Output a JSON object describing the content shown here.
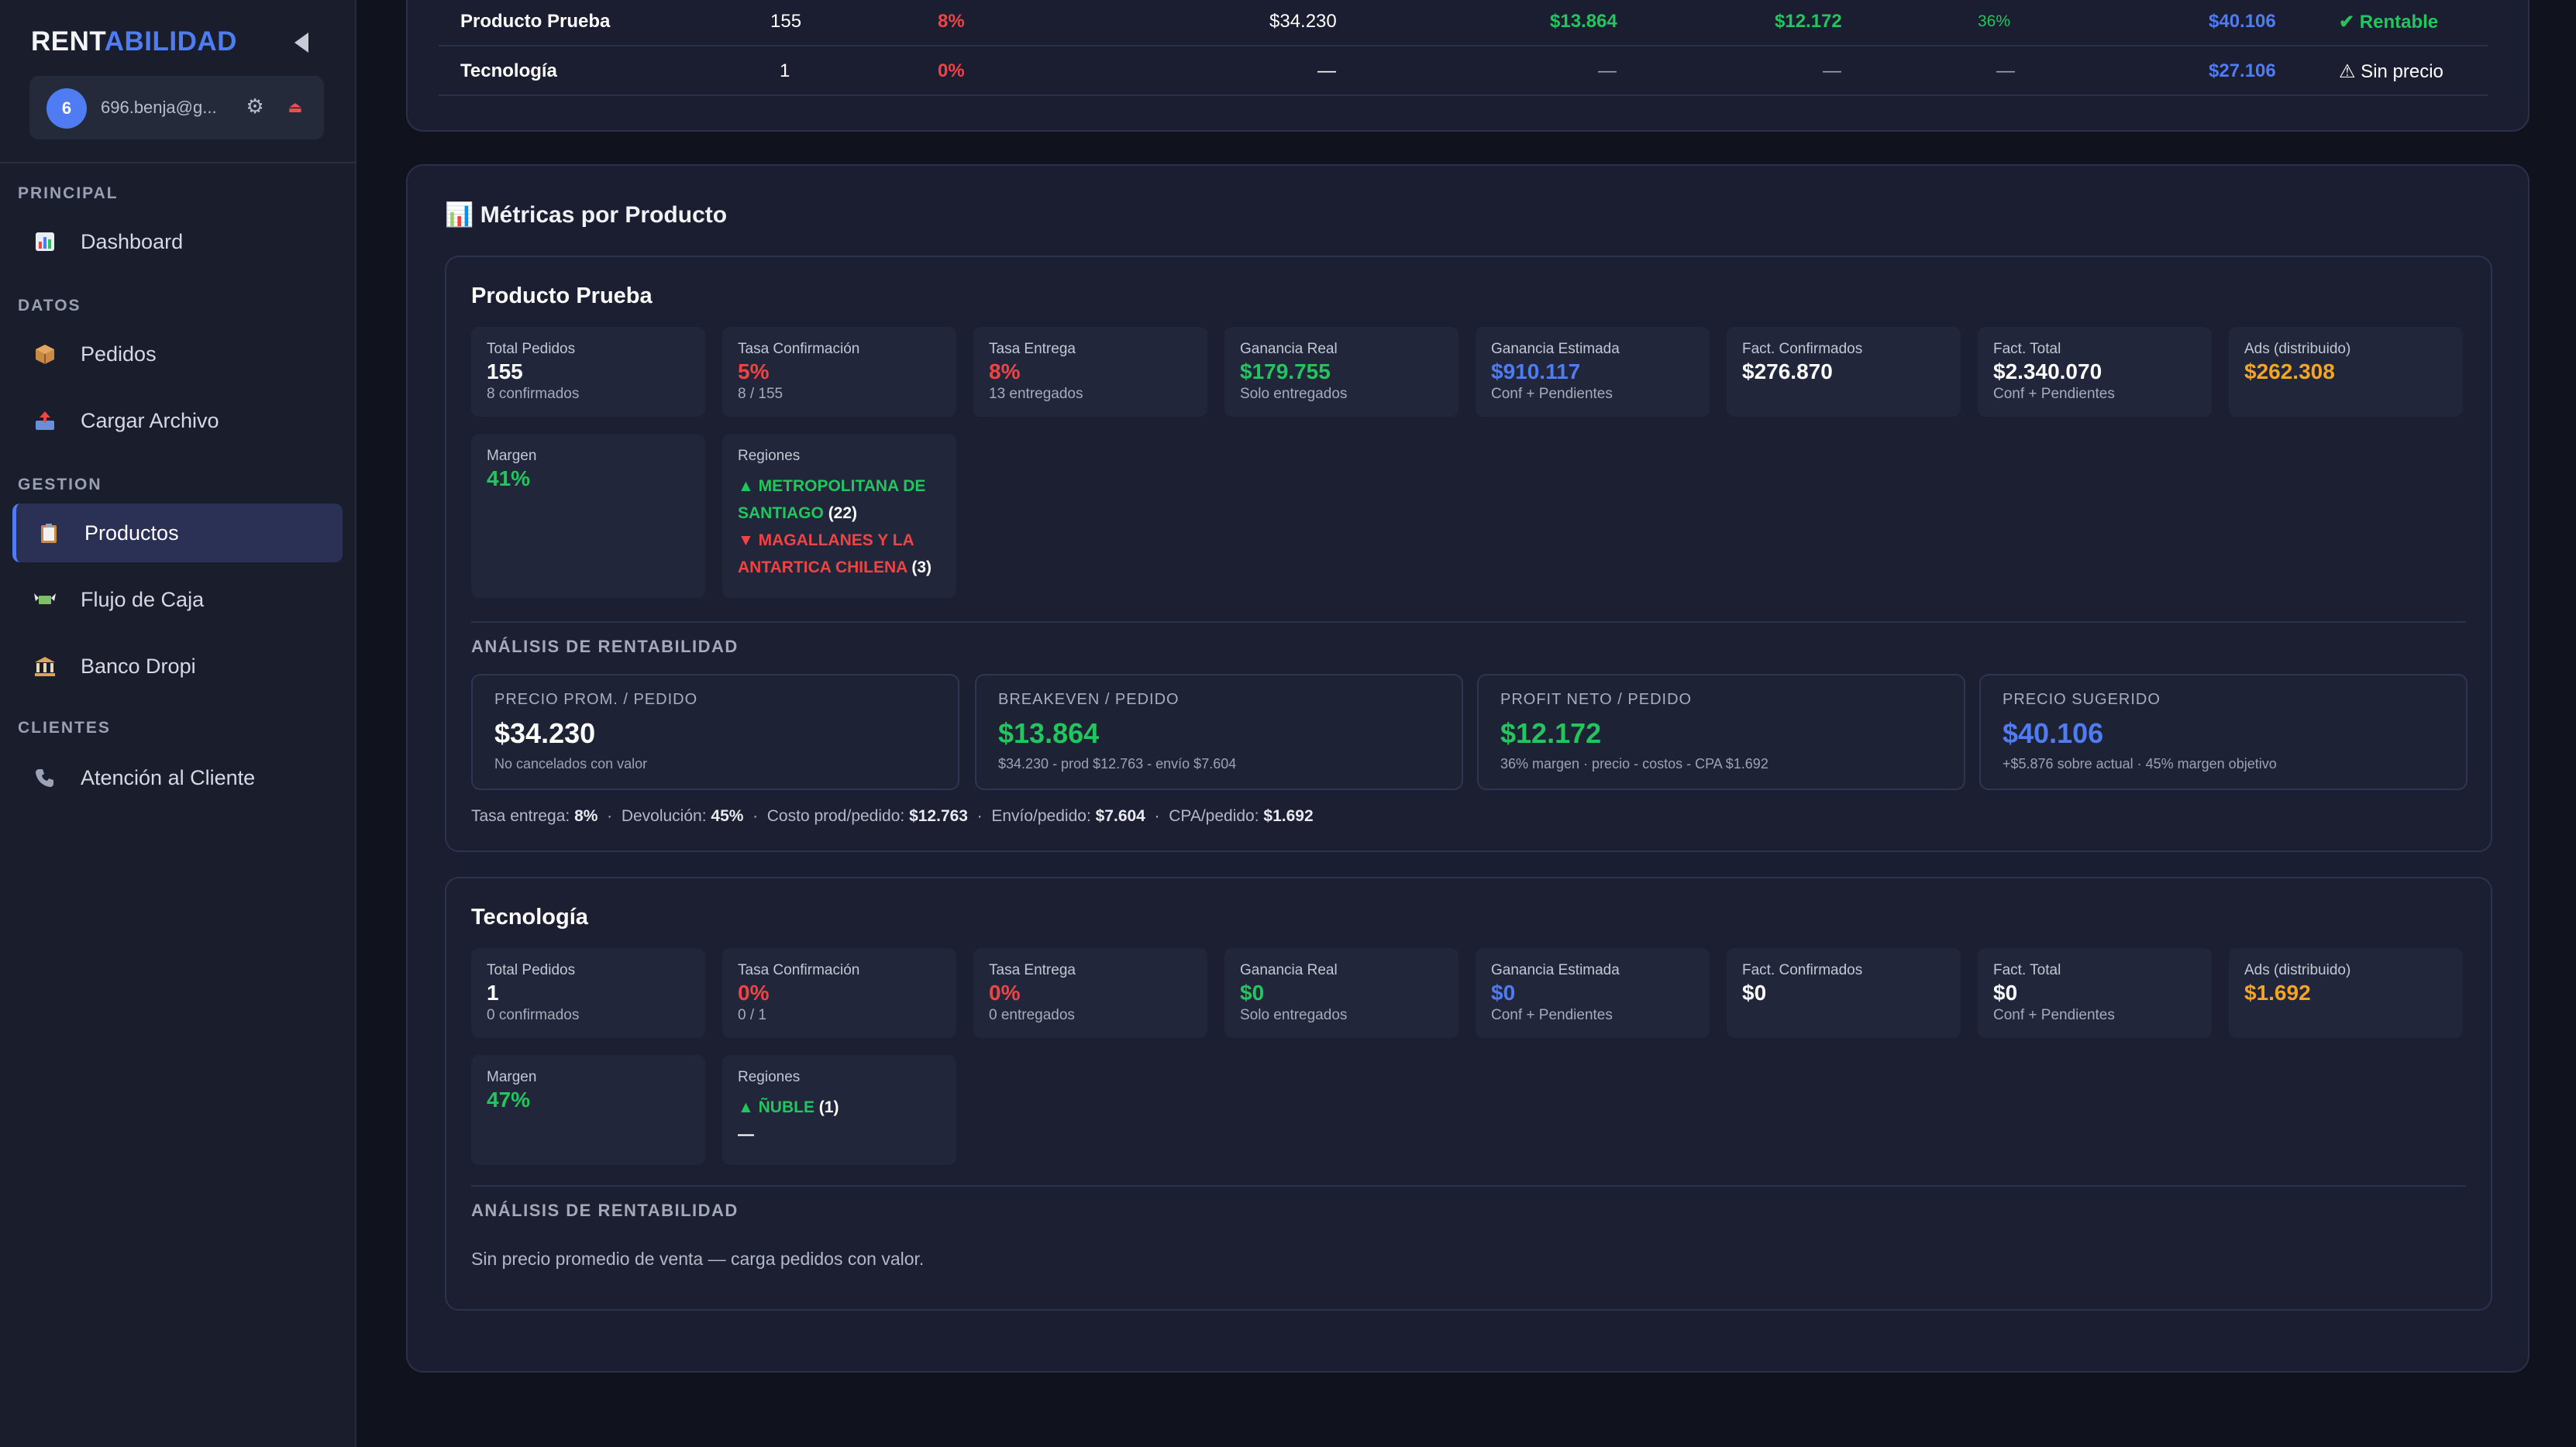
{
  "app": {
    "brand_a": "RENT",
    "brand_b": "ABILIDAD"
  },
  "user": {
    "avatar": "6",
    "email": "696.benja@g...",
    "settings_icon": "gear-icon",
    "logout_icon": "eject-icon"
  },
  "nav": {
    "principal": "PRINCIPAL",
    "datos": "DATOS",
    "gestion": "GESTION",
    "clientes": "CLIENTES",
    "dashboard": "Dashboard",
    "pedidos": "Pedidos",
    "cargar": "Cargar Archivo",
    "productos": "Productos",
    "flujo": "Flujo de Caja",
    "banco": "Banco Dropi",
    "atencion": "Atención al Cliente"
  },
  "table": {
    "rows": [
      {
        "name": "Producto Prueba",
        "orders": "155",
        "rate": "8%",
        "price": "$34.230",
        "breakeven": "$13.864",
        "profit": "$12.172",
        "margin": "36%",
        "suggested": "$40.106",
        "status": "✔ Rentable"
      },
      {
        "name": "Tecnología",
        "orders": "1",
        "rate": "0%",
        "price": "—",
        "breakeven": "—",
        "profit": "—",
        "margin": "—",
        "suggested": "$27.106",
        "status": "⚠ Sin precio"
      }
    ]
  },
  "metrics": {
    "title": "📊 Métricas por Producto",
    "p1": {
      "name": "Producto Prueba",
      "total_t": "Total Pedidos",
      "total_v": "155",
      "total_s": "8 confirmados",
      "conf_t": "Tasa Confirmación",
      "conf_v": "5%",
      "conf_s": "8 / 155",
      "ent_t": "Tasa Entrega",
      "ent_v": "8%",
      "ent_s": "13 entregados",
      "greal_t": "Ganancia Real",
      "greal_v": "$179.755",
      "greal_s": "Solo entregados",
      "gest_t": "Ganancia Estimada",
      "gest_v": "$910.117",
      "gest_s": "Conf + Pendientes",
      "fconf_t": "Fact. Confirmados",
      "fconf_v": "$276.870",
      "ftot_t": "Fact. Total",
      "ftot_v": "$2.340.070",
      "ftot_s": "Conf + Pendientes",
      "ads_t": "Ads (distribuido)",
      "ads_v": "$262.308",
      "margen_t": "Margen",
      "margen_v": "41%",
      "reg_t": "Regiones",
      "reg1": "▲ METROPOLITANA DE SANTIAGO",
      "reg1_n": "(22)",
      "reg2": "▼ MAGALLANES Y LA ANTARTICA CHILENA",
      "reg2_n": "(3)",
      "analysis_t": "ANÁLISIS DE RENTABILIDAD",
      "a1_t": "PRECIO PROM. / PEDIDO",
      "a1_v": "$34.230",
      "a1_s": "No cancelados con valor",
      "a2_t": "BREAKEVEN / PEDIDO",
      "a2_v": "$13.864",
      "a2_s": "$34.230 - prod $12.763 - envío $7.604",
      "a3_t": "PROFIT NETO / PEDIDO",
      "a3_v": "$12.172",
      "a3_s": "36% margen · precio - costos - CPA $1.692",
      "a4_t": "PRECIO SUGERIDO",
      "a4_v": "$40.106",
      "a4_s": "+$5.876 sobre actual · 45% margen objetivo",
      "f_tasa_l": "Tasa entrega:",
      "f_tasa_v": "8%",
      "f_dev_l": "Devolución:",
      "f_dev_v": "45%",
      "f_costo_l": "Costo prod/pedido:",
      "f_costo_v": "$12.763",
      "f_envio_l": "Envío/pedido:",
      "f_envio_v": "$7.604",
      "f_cpa_l": "CPA/pedido:",
      "f_cpa_v": "$1.692"
    },
    "p2": {
      "name": "Tecnología",
      "total_t": "Total Pedidos",
      "total_v": "1",
      "total_s": "0 confirmados",
      "conf_t": "Tasa Confirmación",
      "conf_v": "0%",
      "conf_s": "0 / 1",
      "ent_t": "Tasa Entrega",
      "ent_v": "0%",
      "ent_s": "0 entregados",
      "greal_t": "Ganancia Real",
      "greal_v": "$0",
      "greal_s": "Solo entregados",
      "gest_t": "Ganancia Estimada",
      "gest_v": "$0",
      "gest_s": "Conf + Pendientes",
      "fconf_t": "Fact. Confirmados",
      "fconf_v": "$0",
      "ftot_t": "Fact. Total",
      "ftot_v": "$0",
      "ftot_s": "Conf + Pendientes",
      "ads_t": "Ads (distribuido)",
      "ads_v": "$1.692",
      "margen_t": "Margen",
      "margen_v": "47%",
      "reg_t": "Regiones",
      "reg1": "▲ ÑUBLE",
      "reg1_n": "(1)",
      "reg2": "—",
      "analysis_t": "ANÁLISIS DE RENTABILIDAD",
      "empty": "Sin precio promedio de venta — carga pedidos con valor."
    }
  },
  "colors": {
    "accent": "#4f7cf3",
    "green": "#22c55e",
    "red": "#ef4444",
    "amber": "#f5a524"
  }
}
